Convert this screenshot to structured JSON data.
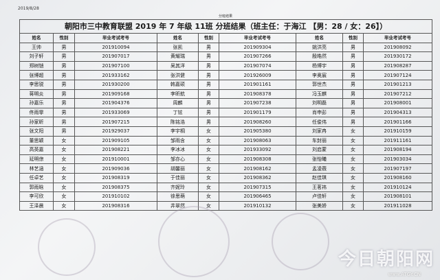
{
  "date": "2019/8/28",
  "caption": "分班结果",
  "title": "朝阳市三中教育联盟 2019 年 7 年级 11班 分班结果（班主任：于海江 【男：28 / 女：26】）",
  "headers": [
    "姓名",
    "性别",
    "毕业考试考号",
    "姓名",
    "性别",
    "毕业考试考号",
    "姓名",
    "性别",
    "毕业考试考号"
  ],
  "rows": [
    [
      "王帅",
      "男",
      "201910094",
      "张凯",
      "男",
      "201909304",
      "姚洪亮",
      "男",
      "201908092"
    ],
    [
      "刘子轩",
      "男",
      "201907017",
      "黄耀瑞",
      "男",
      "201907266",
      "殷皓然",
      "男",
      "201930172"
    ],
    [
      "郑树铠",
      "男",
      "201907100",
      "吴其洋",
      "男",
      "201907074",
      "杨博宇",
      "男",
      "201908287"
    ],
    [
      "张博超",
      "男",
      "201933162",
      "张洪健",
      "男",
      "201926009",
      "李奥宸",
      "男",
      "201907124"
    ],
    [
      "李思锐",
      "男",
      "201930200",
      "韩嘉硕",
      "男",
      "201901161",
      "郭世杰",
      "男",
      "201901213"
    ],
    [
      "蒋明炎",
      "男",
      "201909168",
      "李昕航",
      "男",
      "201908378",
      "冯玉麒",
      "男",
      "201907212"
    ],
    [
      "孙嘉乐",
      "男",
      "201904376",
      "周麟",
      "男",
      "201907238",
      "刘明磊",
      "男",
      "201908001"
    ],
    [
      "佟雨霏",
      "男",
      "201933069",
      "丁铉",
      "男",
      "201901179",
      "肖申彭",
      "男",
      "201904313"
    ],
    [
      "孙家昕",
      "男",
      "201907215",
      "陈铭浩",
      "男",
      "201908260",
      "任俊伟",
      "男",
      "201901166"
    ],
    [
      "张文阳",
      "男",
      "201929037",
      "李宇桐",
      "女",
      "201905380",
      "刘家冉",
      "女",
      "201910159"
    ],
    [
      "董思颖",
      "女",
      "201909105",
      "邹雨含",
      "女",
      "201908063",
      "车封丽",
      "女",
      "201911161"
    ],
    [
      "高英嘉",
      "女",
      "201908221",
      "李冰冰",
      "女",
      "201933092",
      "刘启蒙",
      "女",
      "201908194"
    ],
    [
      "延明倞",
      "女",
      "201910001",
      "邹亦心",
      "女",
      "201908308",
      "张怡曦",
      "女",
      "201903034"
    ],
    [
      "林艺涵",
      "女",
      "201909036",
      "胡馨丽",
      "女",
      "201908162",
      "孟凌薇",
      "女",
      "201907197"
    ],
    [
      "任卓艺",
      "女",
      "201908319",
      "于佳丽",
      "女",
      "201908362",
      "赵佳琪",
      "女",
      "201908160"
    ],
    [
      "郭雨晗",
      "女",
      "201908375",
      "齐妮玲",
      "女",
      "201907315",
      "王茗祎",
      "女",
      "201910124"
    ],
    [
      "李可欣",
      "女",
      "201910102",
      "徐思萌",
      "女",
      "201906465",
      "卢佳轩",
      "女",
      "201908101"
    ],
    [
      "王泽晨",
      "女",
      "201908316",
      "井翠然",
      "女",
      "201910132",
      "张美娇",
      "女",
      "201911028"
    ]
  ],
  "watermark": {
    "text": "今日朝阳网",
    "url": "www.ATGY.CN"
  }
}
